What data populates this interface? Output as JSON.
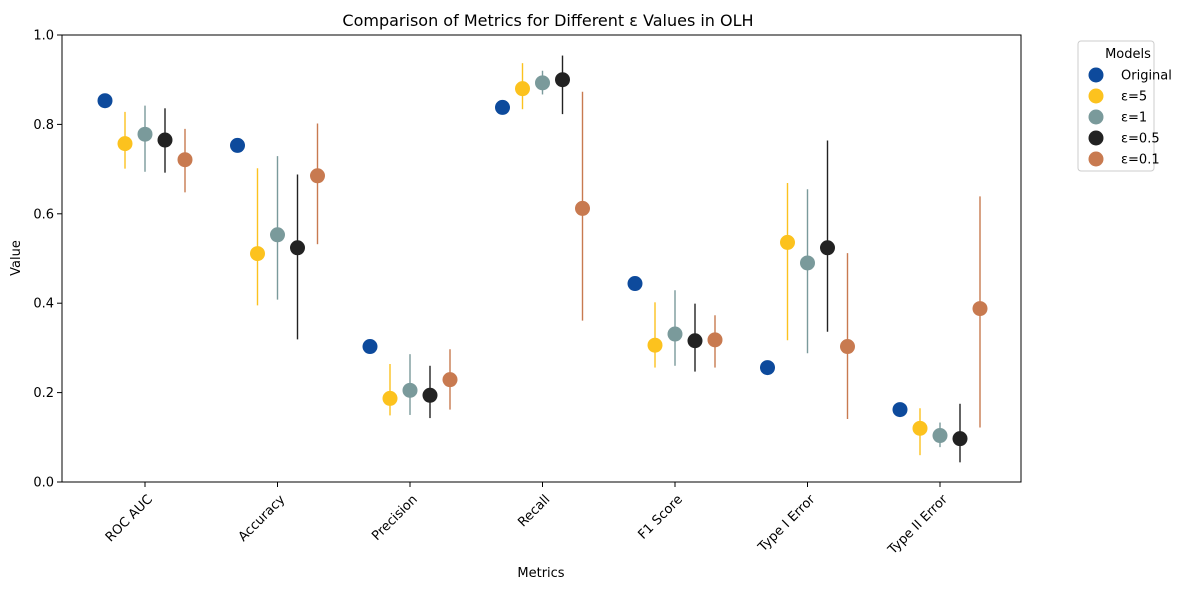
{
  "chart_data": {
    "type": "scatter",
    "title": "Comparison of Metrics for Different ε Values in OLH",
    "xlabel": "Metrics",
    "ylabel": "Value",
    "ylim": [
      0,
      1.0
    ],
    "yticks": [
      "0.0",
      "0.2",
      "0.4",
      "0.6",
      "0.8",
      "1.0"
    ],
    "categories": [
      "ROC AUC",
      "Accuracy",
      "Precision",
      "Recall",
      "F1 Score",
      "Type I Error",
      "Type II Error"
    ],
    "legend_title": "Models",
    "legend_placement": "outside-top-right",
    "series": [
      {
        "name": "Original",
        "color": "#0d4a9c",
        "values": [
          0.853,
          0.753,
          0.303,
          0.838,
          0.444,
          0.256,
          0.162
        ],
        "err_low": [
          null,
          null,
          null,
          null,
          null,
          null,
          null
        ],
        "err_high": [
          null,
          null,
          null,
          null,
          null,
          null,
          null
        ]
      },
      {
        "name": "ε=5",
        "color": "#fcc21e",
        "values": [
          0.757,
          0.511,
          0.187,
          0.88,
          0.306,
          0.536,
          0.12
        ],
        "err_low": [
          0.701,
          0.395,
          0.149,
          0.834,
          0.256,
          0.317,
          0.06
        ],
        "err_high": [
          0.828,
          0.702,
          0.264,
          0.937,
          0.402,
          0.669,
          0.165
        ]
      },
      {
        "name": "ε=1",
        "color": "#7a9a9b",
        "values": [
          0.778,
          0.553,
          0.205,
          0.893,
          0.331,
          0.49,
          0.104
        ],
        "err_low": [
          0.694,
          0.408,
          0.15,
          0.867,
          0.26,
          0.288,
          0.078
        ],
        "err_high": [
          0.842,
          0.729,
          0.286,
          0.92,
          0.429,
          0.655,
          0.133
        ]
      },
      {
        "name": "ε=0.5",
        "color": "#222222",
        "values": [
          0.765,
          0.524,
          0.194,
          0.9,
          0.316,
          0.524,
          0.097
        ],
        "err_low": [
          0.692,
          0.319,
          0.143,
          0.823,
          0.247,
          0.336,
          0.044
        ],
        "err_high": [
          0.836,
          0.688,
          0.26,
          0.954,
          0.399,
          0.764,
          0.175
        ]
      },
      {
        "name": "ε=0.1",
        "color": "#c87a50",
        "values": [
          0.721,
          0.685,
          0.229,
          0.612,
          0.318,
          0.303,
          0.388
        ],
        "err_low": [
          0.648,
          0.532,
          0.162,
          0.361,
          0.256,
          0.141,
          0.122
        ],
        "err_high": [
          0.79,
          0.802,
          0.297,
          0.873,
          0.373,
          0.512,
          0.639
        ]
      }
    ]
  }
}
